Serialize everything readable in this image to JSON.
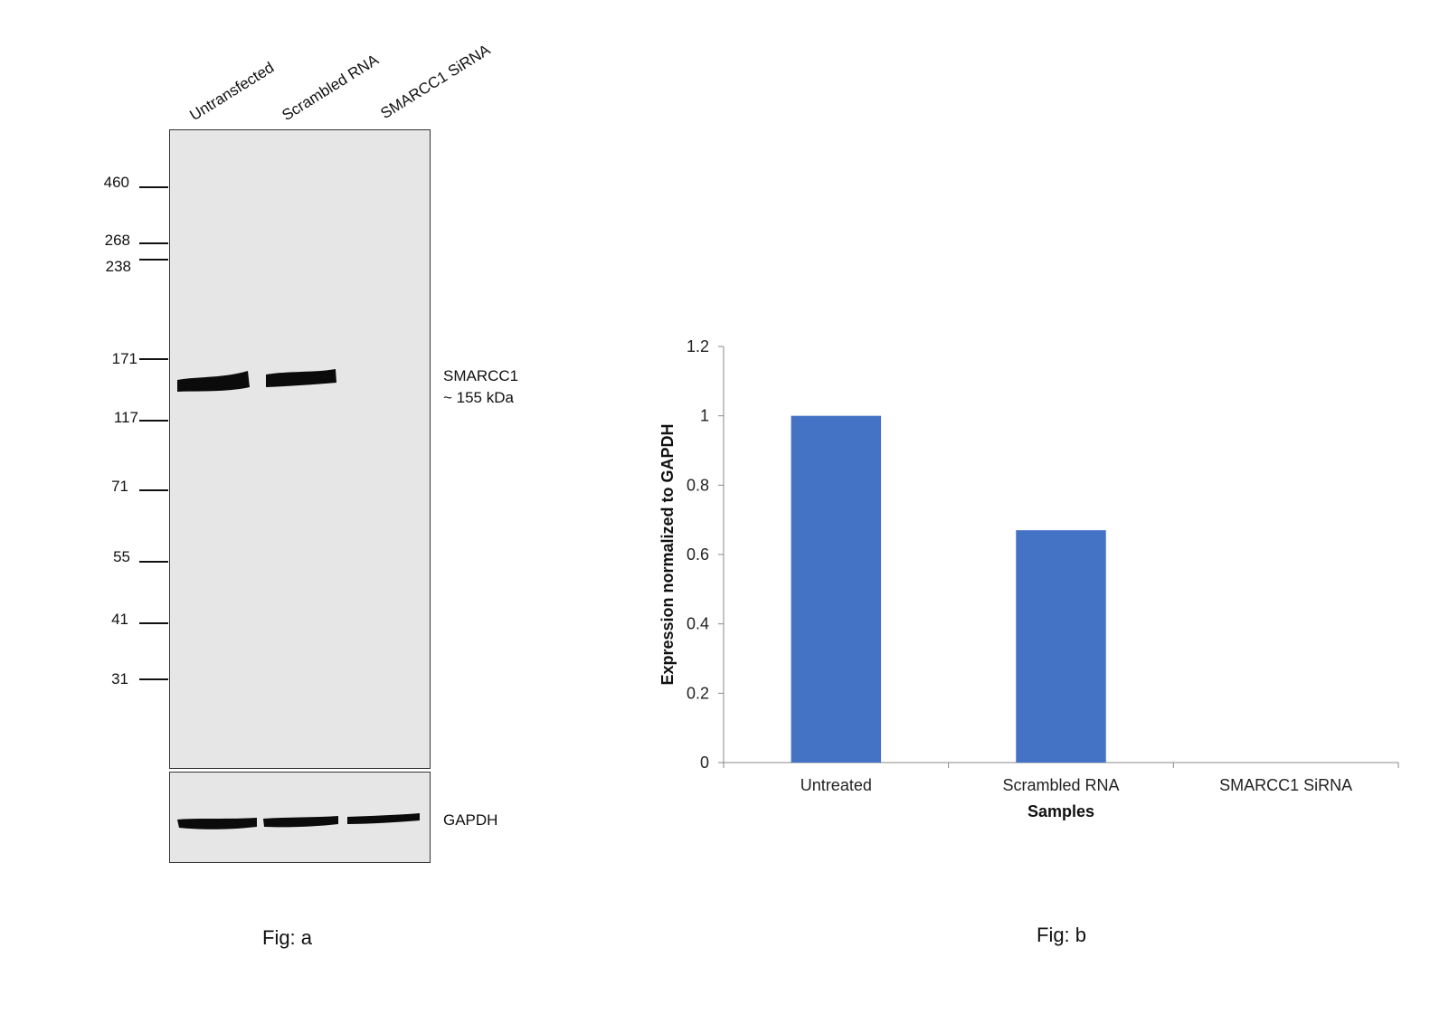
{
  "western_blot": {
    "lanes": [
      "Untransfected",
      "Scrambled RNA",
      "SMARCC1 SiRNA"
    ],
    "markers": [
      "460",
      "268",
      "238",
      "171",
      "117",
      "71",
      "55",
      "41",
      "31"
    ],
    "target_label_line1": "SMARCC1",
    "target_label_line2": "~ 155 kDa",
    "loading_control_label": "GAPDH",
    "caption": "Fig: a"
  },
  "chart_data": {
    "type": "bar",
    "categories": [
      "Untreated",
      "Scrambled RNA",
      "SMARCC1 SiRNA"
    ],
    "values": [
      1.0,
      0.67,
      0.0
    ],
    "xlabel": "Samples",
    "ylabel": "Expression normalized to GAPDH",
    "ylim": [
      0,
      1.2
    ],
    "yticks": [
      "0",
      "0.2",
      "0.4",
      "0.6",
      "0.8",
      "1",
      "1.2"
    ],
    "grid": false,
    "legend": "none",
    "bar_color": "#4472c4",
    "caption": "Fig: b"
  }
}
